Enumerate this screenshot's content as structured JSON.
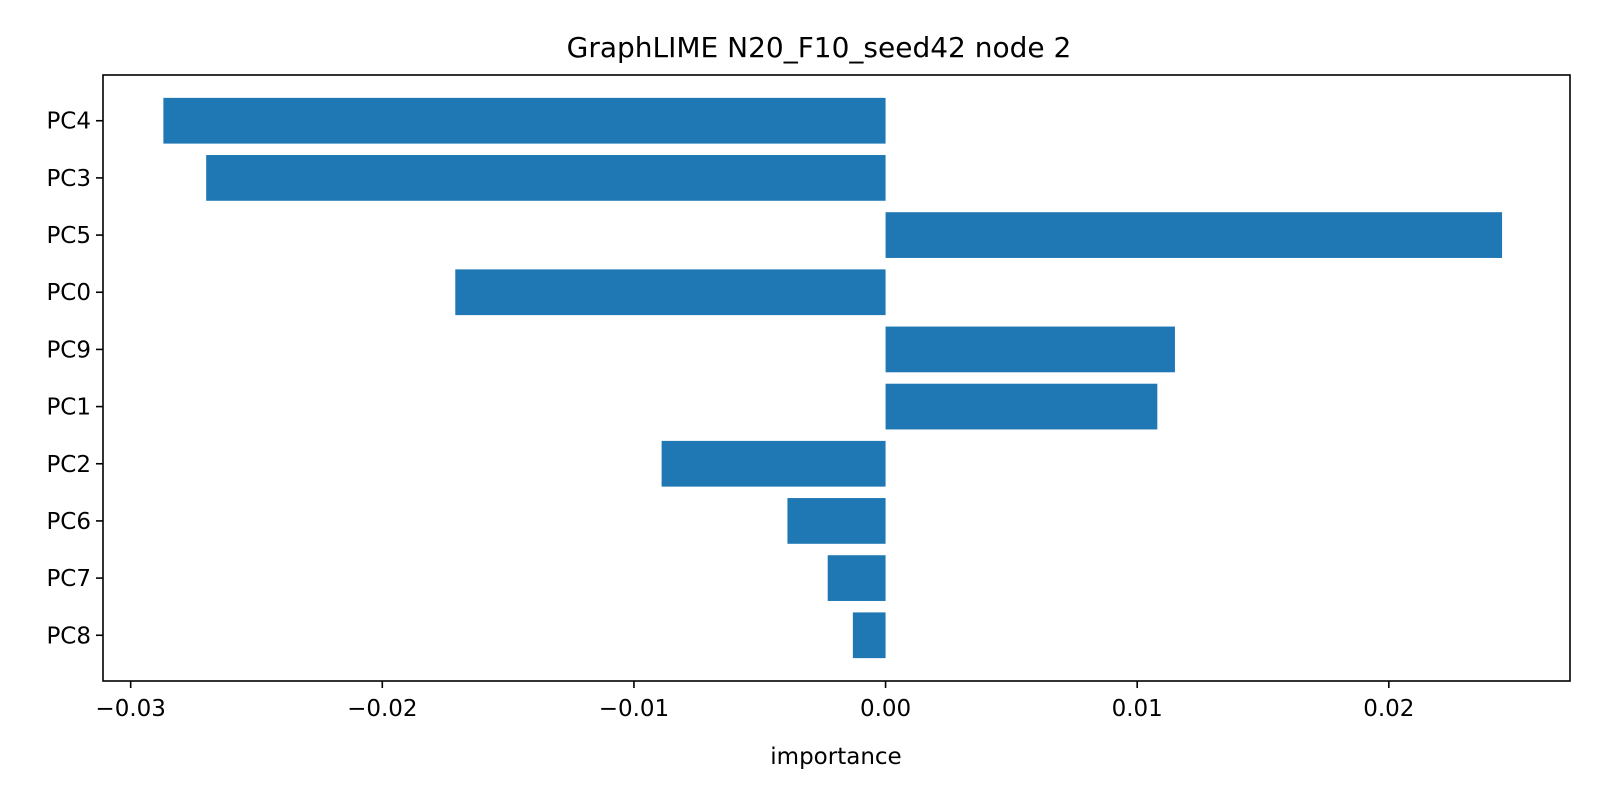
{
  "chart_data": {
    "type": "bar",
    "orientation": "horizontal",
    "title": "GraphLIME N20_F10_seed42 node 2",
    "xlabel": "importance",
    "ylabel": "",
    "categories": [
      "PC4",
      "PC3",
      "PC5",
      "PC0",
      "PC9",
      "PC1",
      "PC2",
      "PC6",
      "PC7",
      "PC8"
    ],
    "values": [
      -0.0287,
      -0.027,
      0.0245,
      -0.0171,
      0.0115,
      0.0108,
      -0.0089,
      -0.0039,
      -0.0023,
      -0.0013
    ],
    "xlim": [
      -0.0311,
      0.0272
    ],
    "xticks": [
      -0.03,
      -0.02,
      -0.01,
      0.0,
      0.01,
      0.02
    ],
    "xtick_labels": [
      "−0.03",
      "−0.02",
      "−0.01",
      "0.00",
      "0.01",
      "0.02"
    ],
    "bar_color": "#1f77b4",
    "grid": false,
    "legend": "none"
  }
}
